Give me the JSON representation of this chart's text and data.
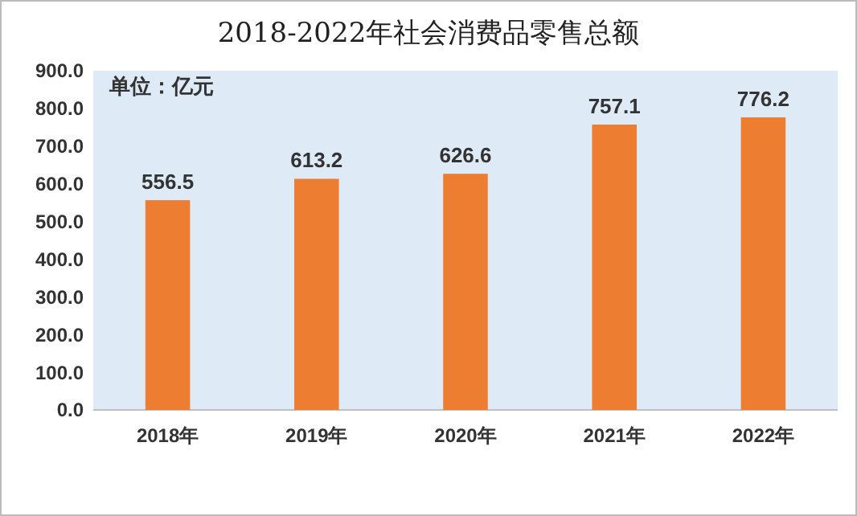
{
  "chart_data": {
    "type": "bar",
    "title": "2018-2022年社会消费品零售总额",
    "categories": [
      "2018年",
      "2019年",
      "2020年",
      "2021年",
      "2022年"
    ],
    "values": [
      556.5,
      613.2,
      626.6,
      757.1,
      776.2
    ],
    "color": "#ed7d31",
    "ylim": [
      0,
      900
    ],
    "yticks": [
      {
        "value": 0,
        "label": "0.0"
      },
      {
        "value": 100,
        "label": "100.0"
      },
      {
        "value": 200,
        "label": "200.0"
      },
      {
        "value": 300,
        "label": "300.0"
      },
      {
        "value": 400,
        "label": "400.0"
      },
      {
        "value": 500,
        "label": "500.0"
      },
      {
        "value": 600,
        "label": "600.0"
      },
      {
        "value": 700,
        "label": "700.0"
      },
      {
        "value": 800,
        "label": "800.0"
      },
      {
        "value": 900,
        "label": "900.0"
      }
    ],
    "data_labels": true,
    "annotations": [
      "单位：亿元"
    ]
  }
}
